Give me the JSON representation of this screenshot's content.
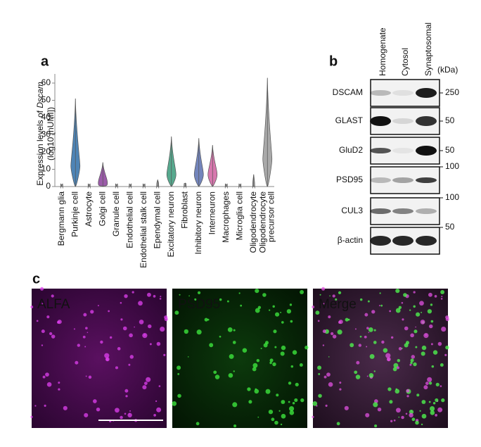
{
  "chart_data": {
    "type": "violin",
    "panel_label": "a",
    "y_label_parts": [
      "Expression levels of ",
      "Dscam",
      "(log10 [nUMI])"
    ],
    "categories": [
      "Bergmann glia",
      "Purkinje cell",
      "Astrocyte",
      "Golgi cell",
      "Granule cell",
      "Endothelial cell",
      "Endothelial stalk cell",
      "Ependymal cell",
      "Excitatory neuron",
      "Fibroblast",
      "Inhibitory neuron",
      "Interneuron",
      "Macrophages",
      "Microglia cell",
      "Oligodendrocyte",
      "Oligodendrocyte precursor cell"
    ],
    "values": [
      1,
      51,
      1,
      14,
      1,
      1,
      1,
      4,
      29,
      2,
      28,
      24,
      1,
      1,
      7,
      63
    ],
    "medians": [
      0,
      12,
      0,
      2,
      0,
      0,
      0,
      0,
      7,
      0,
      7,
      7,
      0,
      0,
      0,
      16
    ],
    "colors": [
      "#999999",
      "#2f6ea8",
      "#999999",
      "#8a3f9a",
      "#999999",
      "#999999",
      "#999999",
      "#999999",
      "#3a9a7a",
      "#999999",
      "#5a70b0",
      "#d060a0",
      "#999999",
      "#999999",
      "#999999",
      "#9a9a9a"
    ],
    "ylim": [
      0,
      63
    ],
    "yticks": [
      0,
      10,
      20,
      30,
      40,
      50,
      60
    ]
  },
  "panel_b": {
    "label": "b",
    "lanes": [
      "Homogenate",
      "Cytosol",
      "Synaptosomal"
    ],
    "unit": "(kDa)",
    "rows": [
      {
        "name": "DSCAM",
        "marker": 250
      },
      {
        "name": "GLAST",
        "marker": 50
      },
      {
        "name": "GluD2",
        "marker": 50
      },
      {
        "name": "PSD95",
        "marker": 100
      },
      {
        "name": "CUL3",
        "marker": 100
      },
      {
        "name": "β-actin",
        "marker": 50
      }
    ]
  },
  "panel_c": {
    "label": "c",
    "images": [
      {
        "label": "ALFA"
      },
      {
        "label": "PSD95"
      },
      {
        "label": "Merge"
      }
    ]
  }
}
